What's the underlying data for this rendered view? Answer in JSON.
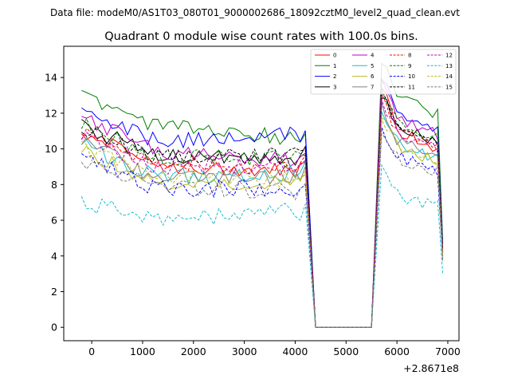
{
  "chart_data": {
    "type": "line",
    "suptitle": "Data file: modeM0/AS1T03_080T01_9000002686_18092cztM0_level2_quad_clean.evt",
    "title": "Quadrant 0 module wise count rates with 100.0s bins.",
    "xlabel": "",
    "ylabel": "",
    "x_offset_label": "+2.8671e8",
    "xlim": [
      -550,
      7220
    ],
    "ylim": [
      -0.75,
      15.75
    ],
    "xticks": [
      0,
      1000,
      2000,
      3000,
      4000,
      5000,
      6000,
      7000
    ],
    "yticks": [
      0,
      2,
      4,
      6,
      8,
      10,
      12,
      14
    ],
    "grid": false,
    "legend_position": "top-right",
    "series": [
      {
        "name": "0",
        "color": "#ff0000",
        "dash": "solid",
        "segments": [
          {
            "t0": -200,
            "start": 11.0,
            "mid": 9.1,
            "end": 8.8
          },
          {
            "t0": 5700,
            "start": 13.5,
            "mid": 11.0,
            "end": 10.0
          }
        ],
        "final": 4.5
      },
      {
        "name": "1",
        "color": "#008000",
        "dash": "solid",
        "segments": [
          {
            "t0": -200,
            "start": 13.0,
            "mid": 11.3,
            "end": 10.6
          },
          {
            "t0": 5700,
            "start": 15.0,
            "mid": 12.8,
            "end": 12.0
          }
        ],
        "final": 4.8
      },
      {
        "name": "2",
        "color": "#0000ff",
        "dash": "solid",
        "segments": [
          {
            "t0": -200,
            "start": 12.1,
            "mid": 10.4,
            "end": 10.8
          },
          {
            "t0": 5700,
            "start": 14.0,
            "mid": 11.8,
            "end": 11.2
          }
        ],
        "final": 4.6
      },
      {
        "name": "3",
        "color": "#000000",
        "dash": "solid",
        "segments": [
          {
            "t0": -200,
            "start": 11.3,
            "mid": 9.6,
            "end": 9.5
          },
          {
            "t0": 5700,
            "start": 13.2,
            "mid": 11.2,
            "end": 10.5
          }
        ],
        "final": 4.2
      },
      {
        "name": "4",
        "color": "#bf00bf",
        "dash": "solid",
        "segments": [
          {
            "t0": -200,
            "start": 11.8,
            "mid": 9.8,
            "end": 9.3
          },
          {
            "t0": 5700,
            "start": 13.8,
            "mid": 11.6,
            "end": 10.8
          }
        ],
        "final": 4.4
      },
      {
        "name": "5",
        "color": "#17becf",
        "dash": "solid",
        "segments": [
          {
            "t0": -200,
            "start": 10.2,
            "mid": 8.4,
            "end": 8.7
          },
          {
            "t0": 5700,
            "start": 12.2,
            "mid": 10.2,
            "end": 9.5
          }
        ],
        "final": 4.0
      },
      {
        "name": "6",
        "color": "#bcbd22",
        "dash": "solid",
        "segments": [
          {
            "t0": -200,
            "start": 9.9,
            "mid": 8.0,
            "end": 8.2
          },
          {
            "t0": 5700,
            "start": 11.8,
            "mid": 10.0,
            "end": 9.3
          }
        ],
        "final": 3.9
      },
      {
        "name": "7",
        "color": "#7f7f7f",
        "dash": "solid",
        "segments": [
          {
            "t0": -200,
            "start": 10.5,
            "mid": 8.3,
            "end": 8.5
          },
          {
            "t0": 5700,
            "start": 12.4,
            "mid": 10.4,
            "end": 9.6
          }
        ],
        "final": 4.1
      },
      {
        "name": "8",
        "color": "#ff0000",
        "dash": "dashed",
        "segments": [
          {
            "t0": -200,
            "start": 10.8,
            "mid": 9.2,
            "end": 9.0
          },
          {
            "t0": 5700,
            "start": 12.8,
            "mid": 10.9,
            "end": 10.2
          }
        ],
        "final": 4.3
      },
      {
        "name": "9",
        "color": "#008000",
        "dash": "dashed",
        "segments": [
          {
            "t0": -200,
            "start": 11.6,
            "mid": 9.5,
            "end": 9.4
          },
          {
            "t0": 5700,
            "start": 13.4,
            "mid": 11.4,
            "end": 10.6
          }
        ],
        "final": 4.4
      },
      {
        "name": "10",
        "color": "#0000ff",
        "dash": "dashed",
        "segments": [
          {
            "t0": -200,
            "start": 9.5,
            "mid": 7.8,
            "end": 7.8
          },
          {
            "t0": 5700,
            "start": 11.2,
            "mid": 9.6,
            "end": 8.6
          }
        ],
        "final": 3.8
      },
      {
        "name": "11",
        "color": "#000000",
        "dash": "dashed",
        "segments": [
          {
            "t0": -200,
            "start": 11.1,
            "mid": 9.5,
            "end": 9.6
          },
          {
            "t0": 5700,
            "start": 13.0,
            "mid": 11.2,
            "end": 10.5
          }
        ],
        "final": 4.3
      },
      {
        "name": "12",
        "color": "#bf00bf",
        "dash": "dashed",
        "segments": [
          {
            "t0": -200,
            "start": 10.6,
            "mid": 9.0,
            "end": 9.1
          },
          {
            "t0": 5700,
            "start": 12.6,
            "mid": 10.8,
            "end": 10.0
          }
        ],
        "final": 4.2
      },
      {
        "name": "13",
        "color": "#17becf",
        "dash": "dashed",
        "segments": [
          {
            "t0": -200,
            "start": 7.1,
            "mid": 6.0,
            "end": 6.5
          },
          {
            "t0": 5700,
            "start": 8.9,
            "mid": 7.3,
            "end": 6.8
          }
        ],
        "final": 3.0
      },
      {
        "name": "14",
        "color": "#bcbd22",
        "dash": "dashed",
        "segments": [
          {
            "t0": -200,
            "start": 10.0,
            "mid": 8.6,
            "end": 8.3
          },
          {
            "t0": 5700,
            "start": 11.8,
            "mid": 10.1,
            "end": 9.4
          }
        ],
        "final": 3.9
      },
      {
        "name": "15",
        "color": "#7f7f7f",
        "dash": "dashed",
        "segments": [
          {
            "t0": -200,
            "start": 9.3,
            "mid": 7.9,
            "end": 7.6
          },
          {
            "t0": 5700,
            "start": 11.0,
            "mid": 9.4,
            "end": 8.8
          }
        ],
        "final": 3.7
      }
    ],
    "gap": {
      "start": 4200,
      "zero_from": 4400,
      "zero_to": 5500,
      "value": 0
    },
    "bin_seconds": 100,
    "final_x": 6900
  }
}
